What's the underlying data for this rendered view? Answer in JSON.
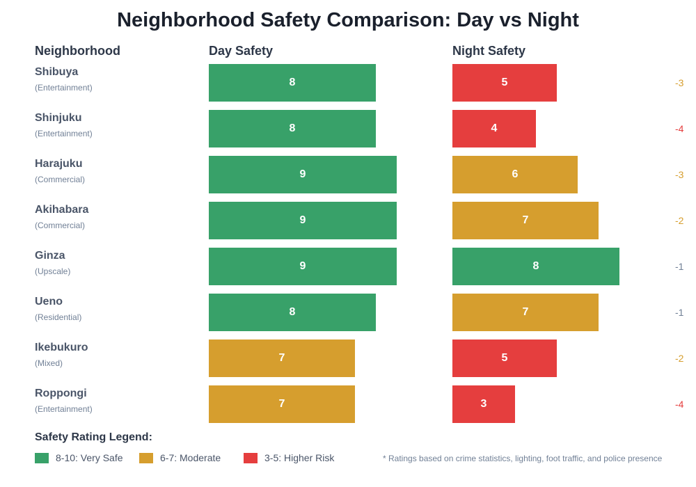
{
  "chart_data": {
    "type": "bar",
    "title": "Neighborhood Safety Comparison: Day vs Night",
    "columns": [
      "Neighborhood",
      "Day Safety",
      "Night Safety"
    ],
    "xlim": [
      0,
      10
    ],
    "rows": [
      {
        "name": "Shibuya",
        "category": "(Entertainment)",
        "day": 8,
        "night": 5,
        "diff": "-3"
      },
      {
        "name": "Shinjuku",
        "category": "(Entertainment)",
        "day": 8,
        "night": 4,
        "diff": "-4"
      },
      {
        "name": "Harajuku",
        "category": "(Commercial)",
        "day": 9,
        "night": 6,
        "diff": "-3"
      },
      {
        "name": "Akihabara",
        "category": "(Commercial)",
        "day": 9,
        "night": 7,
        "diff": "-2"
      },
      {
        "name": "Ginza",
        "category": "(Upscale)",
        "day": 9,
        "night": 8,
        "diff": "-1"
      },
      {
        "name": "Ueno",
        "category": "(Residential)",
        "day": 8,
        "night": 7,
        "diff": "-1"
      },
      {
        "name": "Ikebukuro",
        "category": "(Mixed)",
        "day": 7,
        "night": 5,
        "diff": "-2"
      },
      {
        "name": "Roppongi",
        "category": "(Entertainment)",
        "day": 7,
        "night": 3,
        "diff": "-4"
      }
    ],
    "colors": {
      "very_safe": "#38a169",
      "moderate": "#d69e2e",
      "higher_risk": "#e53e3e",
      "diff_small": "#718096"
    },
    "legend": {
      "title": "Safety Rating Legend:",
      "items": [
        "8-10: Very Safe",
        "6-7: Moderate",
        "3-5: Higher Risk"
      ]
    },
    "note": "* Ratings based on crime statistics, lighting, foot traffic, and police presence"
  }
}
